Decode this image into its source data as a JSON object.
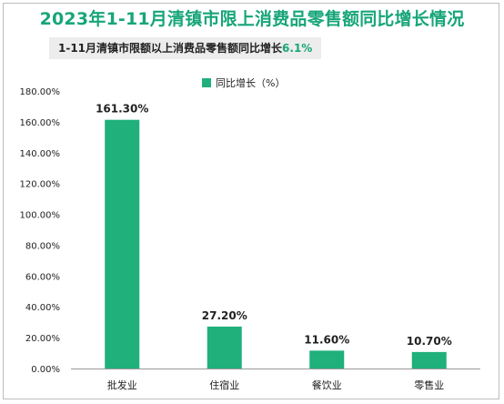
{
  "title": "2023年1-11月清镇市限上消费品零售额同比增长情况",
  "subtitle": {
    "text": "1-11月清镇市限额以上消费品零售额同比增长",
    "highlight": "6.1%"
  },
  "colors": {
    "accent": "#17a579",
    "bar": "#1fb07c",
    "axis": "#999999",
    "text": "#222222"
  },
  "chart_data": {
    "type": "bar",
    "categories": [
      "批发业",
      "住宿业",
      "餐饮业",
      "零售业"
    ],
    "series": [
      {
        "name": "同比增长（%）",
        "values": [
          161.3,
          27.2,
          11.6,
          10.7
        ]
      }
    ],
    "data_labels": [
      "161.30%",
      "27.20%",
      "11.60%",
      "10.70%"
    ],
    "ylim": [
      0,
      180
    ],
    "yticks": [
      0,
      20,
      40,
      60,
      80,
      100,
      120,
      140,
      160,
      180
    ],
    "ytick_labels": [
      "0.00%",
      "20.00%",
      "40.00%",
      "60.00%",
      "80.00%",
      "100.00%",
      "120.00%",
      "140.00%",
      "160.00%",
      "180.00%"
    ],
    "grid": false,
    "legend_position": "top"
  }
}
